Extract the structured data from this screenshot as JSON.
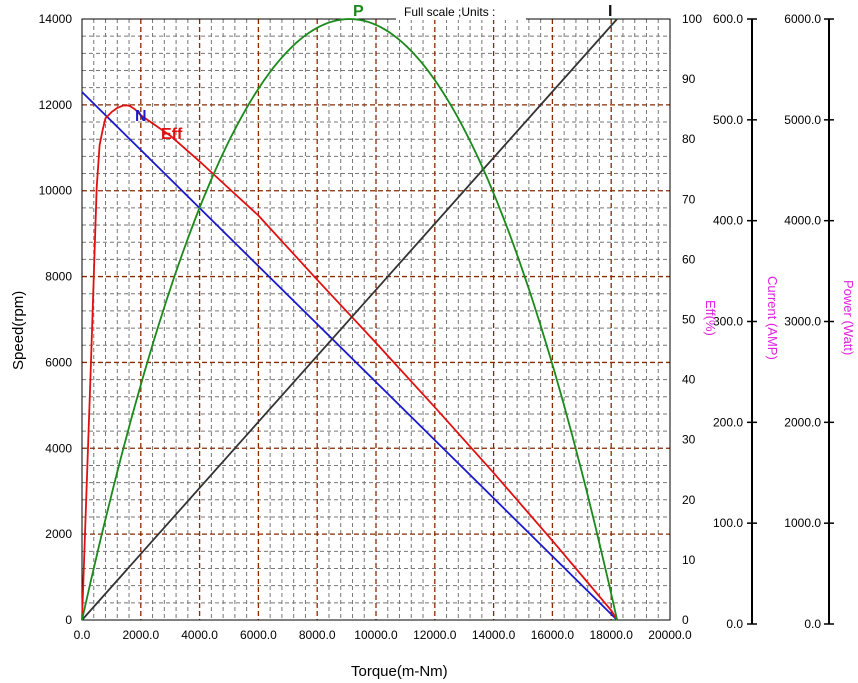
{
  "chart_data": {
    "type": "line",
    "note": "Full scale ;Units :",
    "xlabel": "Torque(m-Nm)",
    "ylabel": "Speed(rpm)",
    "xlim": [
      0,
      20000
    ],
    "ylim": [
      0,
      14000
    ],
    "x_ticks": [
      "0.0",
      "2000.0",
      "4000.0",
      "6000.0",
      "8000.0",
      "10000.0",
      "12000.0",
      "14000.0",
      "16000.0",
      "18000.0",
      "20000.0"
    ],
    "y_ticks": [
      "0",
      "2000",
      "4000",
      "6000",
      "8000",
      "10000",
      "12000",
      "14000"
    ],
    "grid": true,
    "right_axes": [
      {
        "label": "Eff(%)",
        "ylim": [
          0,
          100
        ],
        "ticks": [
          "0",
          "10",
          "20",
          "30",
          "40",
          "50",
          "60",
          "70",
          "80",
          "90",
          "100"
        ]
      },
      {
        "label": "Current (AMP)",
        "ylim": [
          0,
          600
        ],
        "ticks": [
          "0.0",
          "100.0",
          "200.0",
          "300.0",
          "400.0",
          "500.0",
          "600.0"
        ]
      },
      {
        "label": "Power (Watt)",
        "ylim": [
          0,
          6000
        ],
        "ticks": [
          "0.0",
          "1000.0",
          "2000.0",
          "3000.0",
          "4000.0",
          "5000.0",
          "6000.0"
        ]
      }
    ],
    "series": [
      {
        "name": "N",
        "axis": "Speed(rpm)",
        "color": "#1a1acc",
        "x": [
          0,
          18200
        ],
        "y": [
          12300,
          0
        ]
      },
      {
        "name": "Eff",
        "axis": "Eff(%)",
        "color": "#e01010",
        "x": [
          0,
          300,
          500,
          600,
          700,
          800,
          1000,
          1200,
          1400,
          1600,
          1800,
          2000,
          2500,
          3000,
          4000,
          5000,
          6000,
          8000,
          10000,
          12000,
          14000,
          16000,
          17000,
          18000,
          18200
        ],
        "y": [
          0,
          42,
          72,
          79,
          81.5,
          83.5,
          84.5,
          85.2,
          85.6,
          85.6,
          85,
          84,
          82.3,
          80.6,
          76.3,
          71.8,
          67.3,
          56.6,
          46.1,
          35.4,
          24.5,
          13.2,
          7.4,
          1.6,
          0
        ]
      },
      {
        "name": "I",
        "axis": "Current (AMP)",
        "color": "#333333",
        "x": [
          0,
          18200
        ],
        "y": [
          0,
          600
        ]
      },
      {
        "name": "P",
        "axis": "Power (Watt)",
        "color": "#1a8a1a",
        "shape": "parabola",
        "x_start": 0,
        "x_end": 18200,
        "peak": {
          "x": 9100,
          "y": 6000
        }
      }
    ]
  }
}
